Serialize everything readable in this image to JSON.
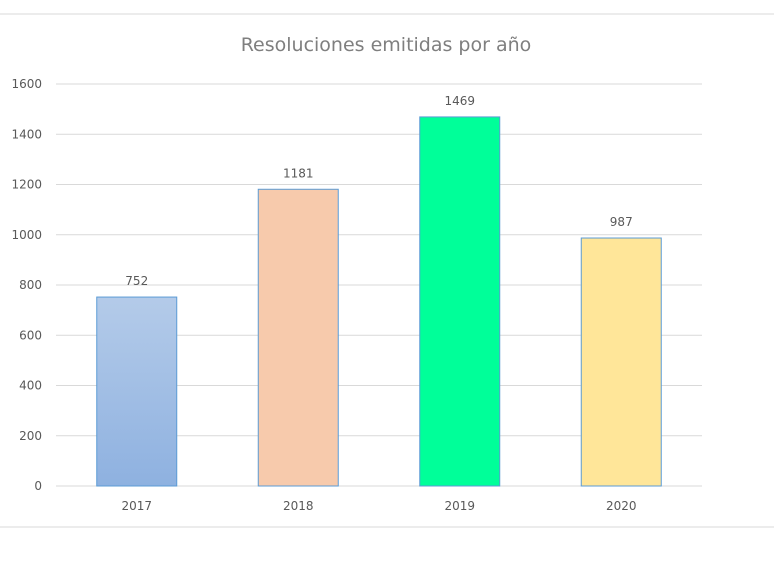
{
  "chart_data": {
    "type": "bar",
    "title": "Resoluciones emitidas por año",
    "categories": [
      "2017",
      "2018",
      "2019",
      "2020"
    ],
    "values": [
      752,
      1181,
      1469,
      987
    ],
    "data_labels": [
      "752",
      "1181",
      "1469",
      "987"
    ],
    "y_ticks": [
      "0",
      "200",
      "400",
      "600",
      "800",
      "1000",
      "1200",
      "1400",
      "1600"
    ],
    "ylim": [
      0,
      1600
    ],
    "xlabel": "",
    "ylabel": "",
    "grid": true,
    "legend": "none",
    "colors": {
      "2017": {
        "fill_top": "#b4cbe9",
        "fill_bottom": "#8eb1e0",
        "stroke": "#5b9bd5",
        "gradient": true
      },
      "2018": {
        "fill": "#f7caac",
        "stroke": "#5b9bd5"
      },
      "2019": {
        "fill": "#00ff99",
        "stroke": "#5b9bd5"
      },
      "2020": {
        "fill": "#ffe699",
        "stroke": "#5b9bd5"
      }
    },
    "gridline_color": "#d9d9d9",
    "frame_color": "#d9d9d9"
  }
}
